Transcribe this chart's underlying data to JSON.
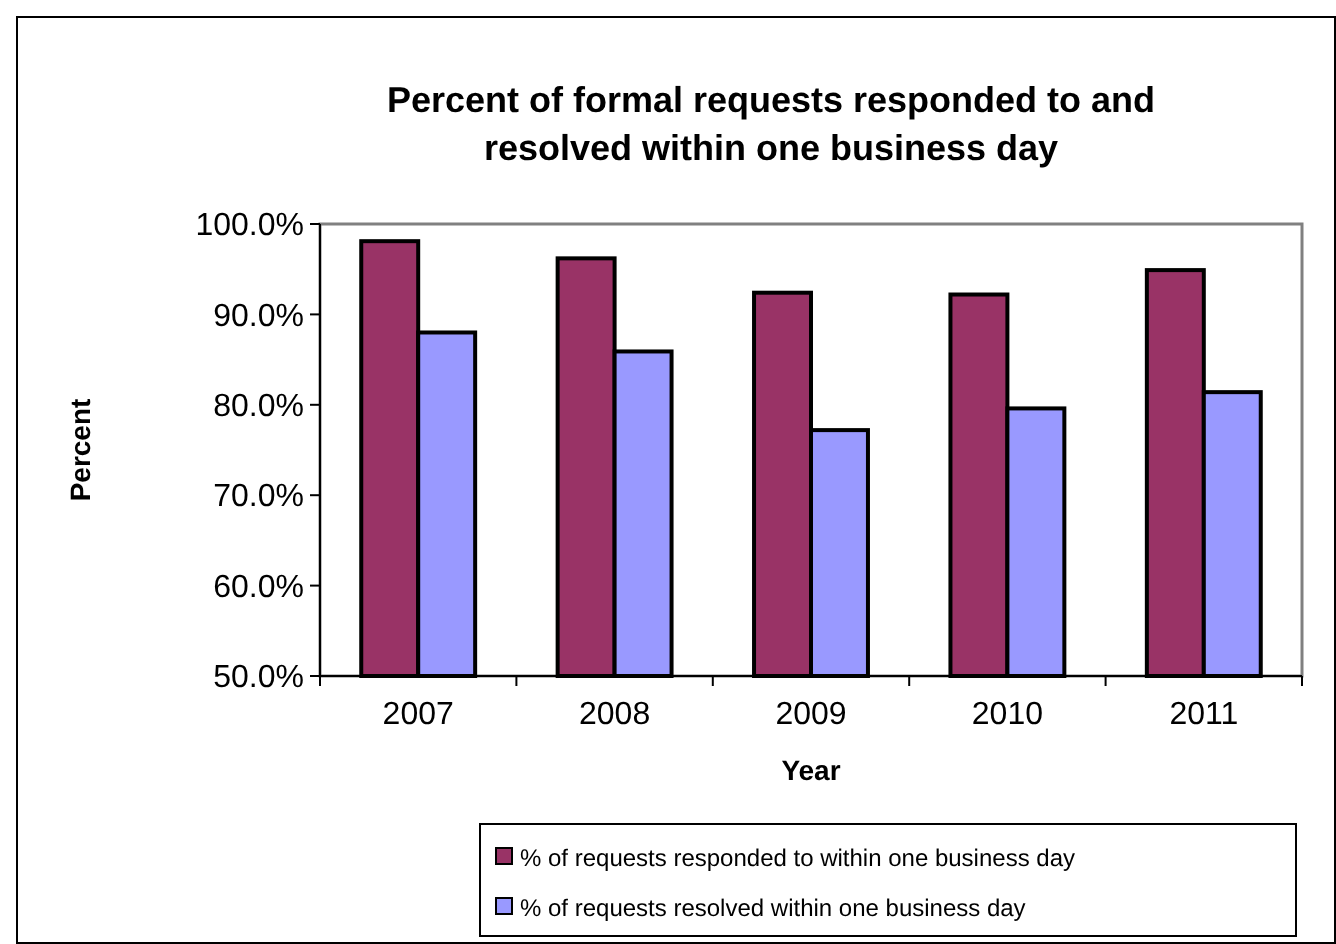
{
  "chart_data": {
    "type": "bar",
    "title": "Percent of formal requests responded to and resolved within one business day",
    "xlabel": "Year",
    "ylabel": "Percent",
    "categories": [
      "2007",
      "2008",
      "2009",
      "2010",
      "2011"
    ],
    "series": [
      {
        "name": "% of requests responded to within one business day",
        "color": "#993366",
        "values": [
          98.1,
          96.2,
          92.4,
          92.2,
          94.9
        ]
      },
      {
        "name": "% of requests resolved within one business day",
        "color": "#9999ff",
        "values": [
          88.0,
          85.9,
          77.2,
          79.6,
          81.4
        ]
      }
    ],
    "ylim": [
      50,
      100
    ],
    "yticks": [
      {
        "value": 50,
        "label": "50.0%"
      },
      {
        "value": 60,
        "label": "60.0%"
      },
      {
        "value": 70,
        "label": "70.0%"
      },
      {
        "value": 80,
        "label": "80.0%"
      },
      {
        "value": 90,
        "label": "90.0%"
      },
      {
        "value": 100,
        "label": "100.0%"
      }
    ],
    "grid": false,
    "legend": "bottom"
  }
}
